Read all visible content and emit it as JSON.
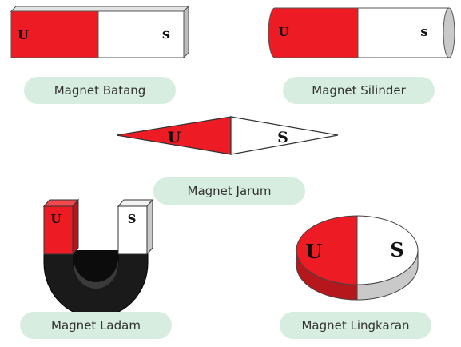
{
  "colors": {
    "red": "#ED1C24",
    "red_dark": "#B5171D",
    "white": "#FFFFFF",
    "grey": "#C9C9C9",
    "black": "#161616",
    "label_bg": "#D6EDDF",
    "outline": "#555555"
  },
  "poles": {
    "north": "U",
    "south": "S",
    "south_small": "s"
  },
  "labels": {
    "bar": "Magnet Batang",
    "cylinder": "Magnet Silinder",
    "needle": "Magnet Jarum",
    "horseshoe": "Magnet Ladam",
    "ring": "Magnet Lingkaran"
  }
}
